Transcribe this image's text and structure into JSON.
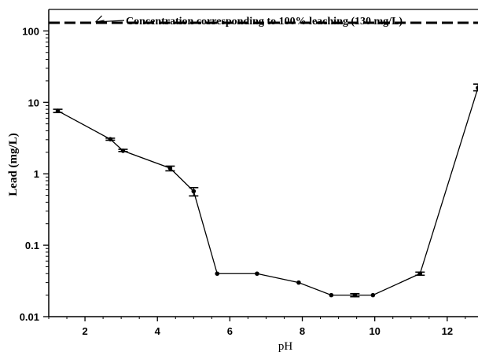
{
  "chart_data": {
    "type": "line",
    "xlabel": "pH",
    "ylabel": "Lead (mg/L)",
    "x_ticks": [
      2,
      4,
      6,
      8,
      10,
      12
    ],
    "x_tick_labels": [
      "2",
      "4",
      "6",
      "8",
      "10",
      "12"
    ],
    "y_ticks": [
      0.01,
      0.1,
      1,
      10,
      100
    ],
    "y_tick_labels": [
      "0.01",
      "0.1",
      "1",
      "10",
      "100"
    ],
    "y_scale": "log",
    "xlim": [
      1.0,
      12.85
    ],
    "ylim": [
      0.01,
      200
    ],
    "grid": false,
    "series": [
      {
        "x": [
          1.25,
          2.7,
          3.05,
          4.35,
          5.0,
          5.65,
          6.75,
          7.9,
          8.8,
          9.45,
          9.95,
          11.25,
          12.85
        ],
        "y": [
          7.6,
          3.05,
          2.1,
          1.2,
          0.57,
          0.04,
          0.04,
          0.03,
          0.02,
          0.02,
          0.02,
          0.04,
          16
        ],
        "err_low": [
          7.2,
          2.95,
          2.05,
          1.1,
          0.49,
          0.04,
          0.04,
          0.03,
          0.02,
          0.019,
          0.02,
          0.038,
          14.5
        ],
        "err_high": [
          8.0,
          3.15,
          2.2,
          1.28,
          0.64,
          0.04,
          0.04,
          0.03,
          0.02,
          0.021,
          0.02,
          0.042,
          18.0
        ],
        "color": "#000000"
      }
    ],
    "reference_line": {
      "y": 130,
      "style": "dashed"
    },
    "annotation": {
      "text": "Concentration corresponding to 100% leaching (130 mg/L)",
      "arrow_to": {
        "x": 2.25,
        "y": 130
      }
    }
  }
}
